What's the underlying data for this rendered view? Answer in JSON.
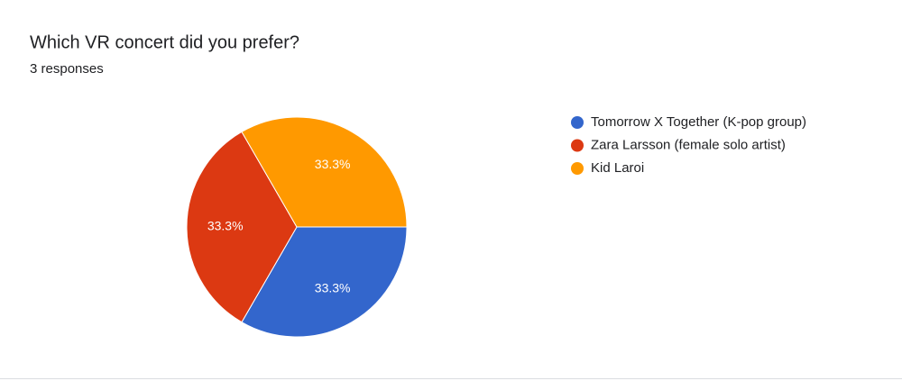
{
  "chart_data": {
    "type": "pie",
    "title": "Which VR concert did you prefer?",
    "subtitle": "3 responses",
    "categories": [
      "Tomorrow X Together (K-pop group)",
      "Zara Larsson (female solo artist)",
      "Kid Laroi"
    ],
    "values": [
      33.3,
      33.3,
      33.3
    ],
    "value_labels": [
      "33.3%",
      "33.3%",
      "33.3%"
    ],
    "colors": [
      "#3366cc",
      "#dc3912",
      "#ff9900"
    ],
    "legend": "right"
  }
}
